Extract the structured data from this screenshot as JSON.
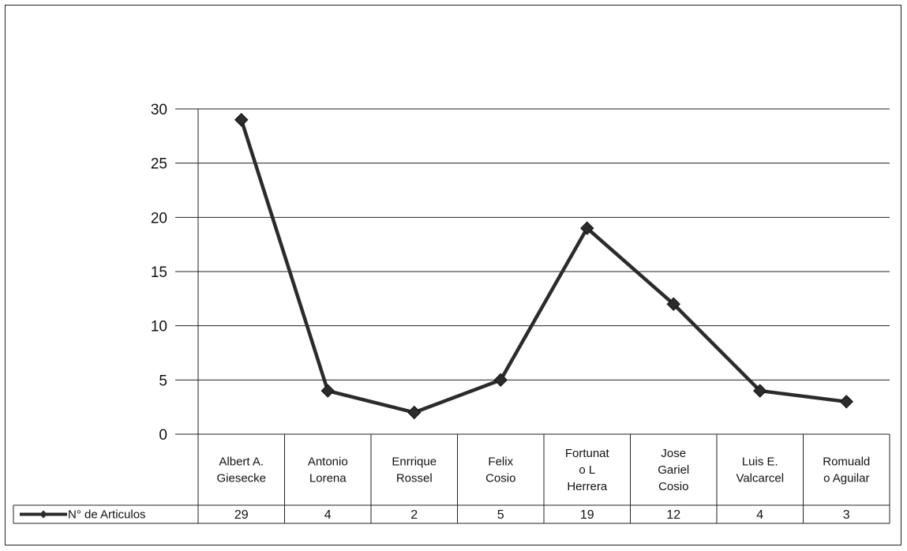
{
  "chart_data": {
    "type": "line",
    "title": "",
    "xlabel": "",
    "ylabel": "",
    "ylim": [
      0,
      30
    ],
    "yticks": [
      0,
      5,
      10,
      15,
      20,
      25,
      30
    ],
    "grid": true,
    "legend_position": "bottom-left in data table",
    "data_table": true,
    "categories": [
      [
        "Albert A.",
        "Giesecke"
      ],
      [
        "Antonio",
        "Lorena"
      ],
      [
        "Enrrique",
        "Rossel"
      ],
      [
        "Felix",
        "Cosio"
      ],
      [
        "Fortunat",
        "o L",
        "Herrera"
      ],
      [
        "Jose",
        "Gariel",
        "Cosio"
      ],
      [
        "Luis E.",
        "Valcarcel"
      ],
      [
        "Romuald",
        "o Aguilar"
      ]
    ],
    "series": [
      {
        "name": "N° de Articulos",
        "values": [
          29,
          4,
          2,
          5,
          19,
          12,
          4,
          3
        ],
        "color": "#2b2b2b",
        "marker": "diamond"
      }
    ]
  }
}
